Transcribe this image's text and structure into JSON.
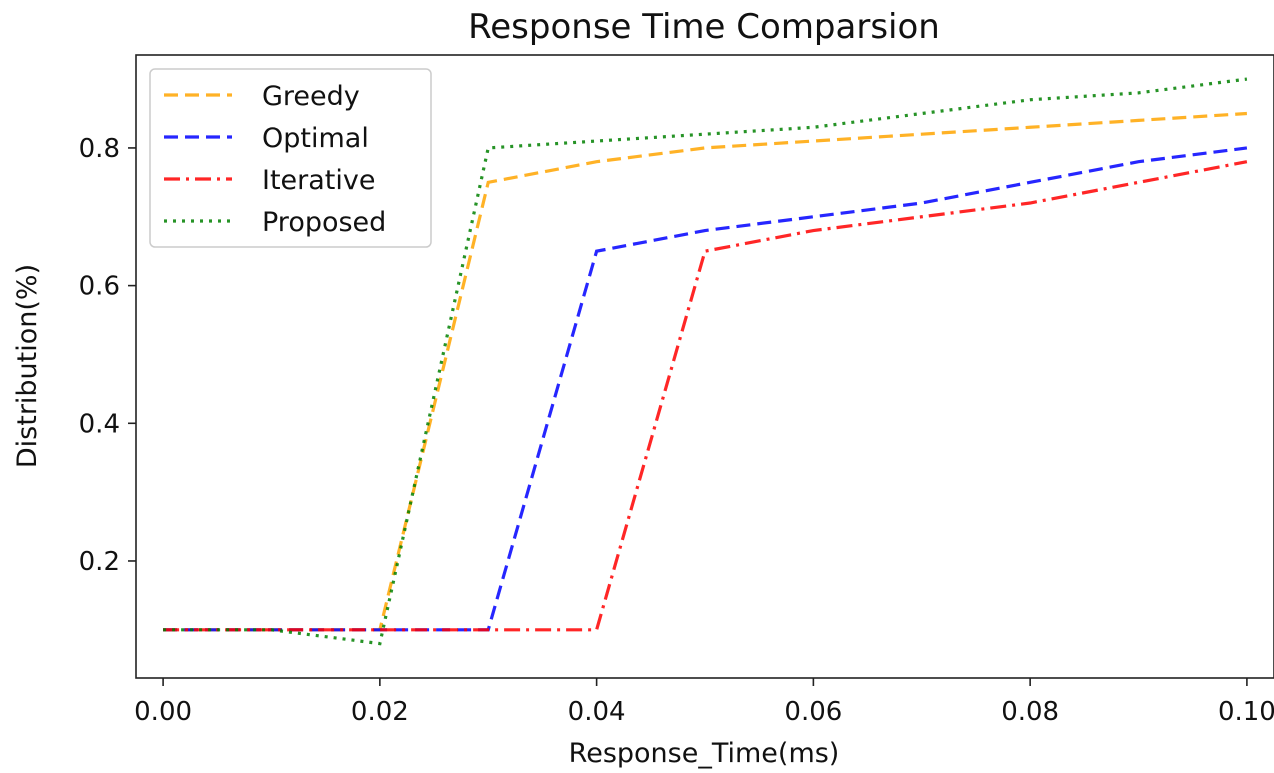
{
  "chart_data": {
    "type": "line",
    "title": "Response Time Comparsion",
    "xlabel": "Response_Time(ms)",
    "ylabel": "Distribution(%)",
    "xlim": [
      -0.0025,
      0.1025
    ],
    "ylim": [
      0.03,
      0.935
    ],
    "xticks": [
      0.0,
      0.02,
      0.04,
      0.06,
      0.08,
      0.1
    ],
    "xtick_labels": [
      "0.00",
      "0.02",
      "0.04",
      "0.06",
      "0.08",
      "0.10"
    ],
    "yticks": [
      0.2,
      0.4,
      0.6,
      0.8
    ],
    "ytick_labels": [
      "0.2",
      "0.4",
      "0.6",
      "0.8"
    ],
    "grid": false,
    "legend_position": "upper-left",
    "series": [
      {
        "name": "Greedy",
        "color": "#ffa500",
        "linestyle": "dashed",
        "x": [
          0.0,
          0.02,
          0.03,
          0.04,
          0.05,
          0.06,
          0.07,
          0.08,
          0.09,
          0.1
        ],
        "y": [
          0.1,
          0.1,
          0.75,
          0.78,
          0.8,
          0.81,
          0.82,
          0.83,
          0.84,
          0.85
        ]
      },
      {
        "name": "Optimal",
        "color": "#0000ff",
        "linestyle": "dashed",
        "x": [
          0.0,
          0.02,
          0.03,
          0.04,
          0.05,
          0.06,
          0.07,
          0.08,
          0.09,
          0.1
        ],
        "y": [
          0.1,
          0.1,
          0.1,
          0.65,
          0.68,
          0.7,
          0.72,
          0.75,
          0.78,
          0.8
        ]
      },
      {
        "name": "Iterative",
        "color": "#ff0000",
        "linestyle": "dashdot",
        "x": [
          0.0,
          0.02,
          0.03,
          0.04,
          0.05,
          0.06,
          0.07,
          0.08,
          0.09,
          0.1
        ],
        "y": [
          0.1,
          0.1,
          0.1,
          0.1,
          0.65,
          0.68,
          0.7,
          0.72,
          0.75,
          0.78
        ]
      },
      {
        "name": "Proposed",
        "color": "#008000",
        "linestyle": "dotted",
        "x": [
          0.0,
          0.01,
          0.02,
          0.03,
          0.04,
          0.05,
          0.06,
          0.07,
          0.08,
          0.09,
          0.1
        ],
        "y": [
          0.1,
          0.1,
          0.08,
          0.8,
          0.81,
          0.82,
          0.83,
          0.85,
          0.87,
          0.88,
          0.9
        ]
      }
    ]
  }
}
